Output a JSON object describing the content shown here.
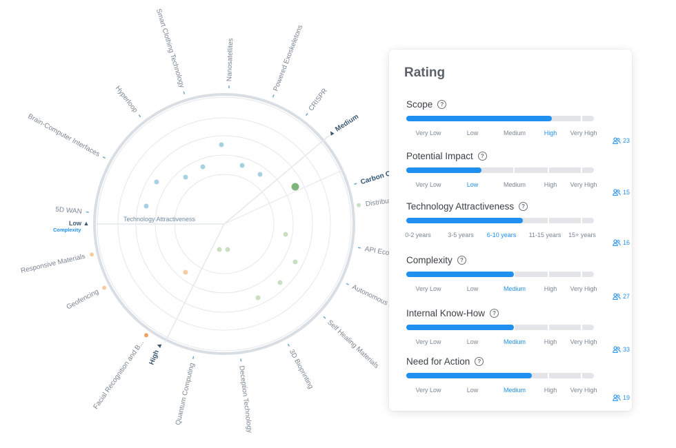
{
  "radar": {
    "axis_label": "Technology Attractiveness",
    "low_label": "Low ▲",
    "complexity_label": "Complexity",
    "medium_label": "▲ Medium",
    "high_label": "High ▲",
    "technologies": [
      "Smart Clothing Technology",
      "Nanosatellites",
      "Powered Exoskeletons",
      "CRISPR",
      "Carbon Captur",
      "Distribut",
      "API Econ",
      "Autonomous Dr",
      "Self Healing Materials",
      "3D Bioprinting",
      "Deception Technology",
      "Quantum Computing",
      "Facial Recognition and B...",
      "Geofencing",
      "Responsive Materials",
      "5D WAN",
      "Brain-Computer Interfaces",
      "Hyperloop"
    ],
    "colors": {
      "ring": "#d9dee4",
      "grid": "#e4e7eb",
      "blue_dot": "#a6d1e0",
      "green_dot": "#c8e0bf",
      "orange_dot": "#f5cca2",
      "highlight_dot": "#7fb57a"
    }
  },
  "rating": {
    "title": "Rating",
    "help_glyph": "?",
    "accent": "#1f8ff0",
    "sections": [
      {
        "title": "Scope",
        "ticks": [
          "Very Low",
          "Low",
          "Medium",
          "High",
          "Very High"
        ],
        "active": 3,
        "fill": 0.775,
        "count": "23"
      },
      {
        "title": "Potential Impact",
        "ticks": [
          "Very Low",
          "Low",
          "Medium",
          "High",
          "Very High"
        ],
        "active": 1,
        "fill": 0.4,
        "count": "15"
      },
      {
        "title": "Technology Attractiveness",
        "ticks": [
          "0-2 years",
          "3-5 years",
          "6-10 years",
          "11-15 years",
          "15+ years"
        ],
        "active": 2,
        "fill": 0.62,
        "count": "16"
      },
      {
        "title": "Complexity",
        "ticks": [
          "Very Low",
          "Low",
          "Medium",
          "High",
          "Very High"
        ],
        "active": 2,
        "fill": 0.575,
        "count": "27"
      },
      {
        "title": "Internal Know-How",
        "ticks": [
          "Very Low",
          "Low",
          "Medium",
          "High",
          "Very High"
        ],
        "active": 2,
        "fill": 0.575,
        "count": "33"
      },
      {
        "title": "Need for Action",
        "ticks": [
          "Very Low",
          "Low",
          "Medium",
          "High",
          "Very High"
        ],
        "active": 2,
        "fill": 0.67,
        "count": "19"
      }
    ]
  }
}
